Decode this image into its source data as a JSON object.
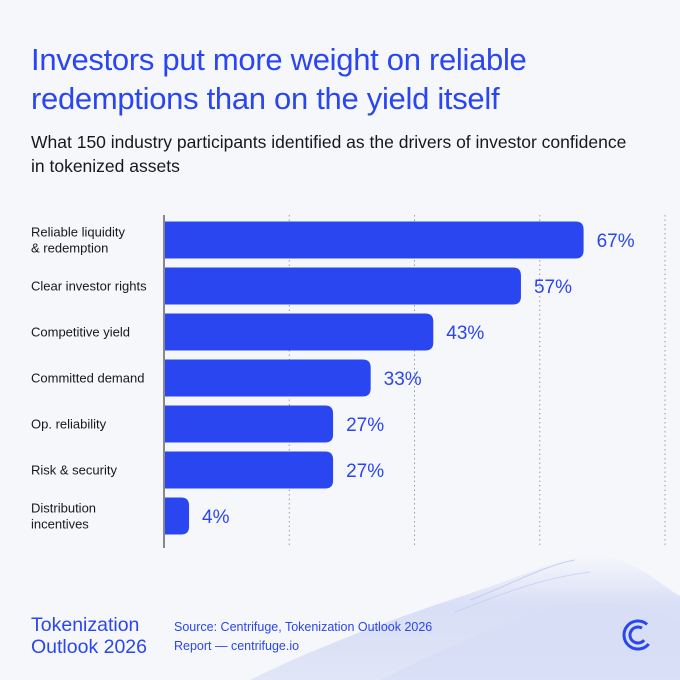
{
  "title": "Investors put more weight on reliable redemptions than on the yield itself",
  "subtitle": "What 150 industry participants identified as the drivers of investor confidence in tokenized assets",
  "brand": {
    "line1": "Tokenization",
    "line2": "Outlook 2026"
  },
  "source": {
    "line1": "Source: Centrifuge, Tokenization Outlook 2026",
    "line2": "Report — centrifuge.io"
  },
  "logo_icon": "centrifuge-logo-icon",
  "colors": {
    "bar": "#2a46f0",
    "text_accent": "#2a46f0",
    "background": "#f6f7fb",
    "grid": "#9a9ca3"
  },
  "chart_data": {
    "type": "bar",
    "orientation": "horizontal",
    "categories": [
      [
        "Reliable liquidity",
        "& redemption"
      ],
      [
        "Clear investor rights"
      ],
      [
        "Competitive yield"
      ],
      [
        "Committed demand"
      ],
      [
        "Op. reliability"
      ],
      [
        "Risk & security"
      ],
      [
        "Distribution",
        "incentives"
      ]
    ],
    "values": [
      67,
      57,
      43,
      33,
      27,
      27,
      4
    ],
    "value_labels": [
      "67%",
      "57%",
      "43%",
      "33%",
      "27%",
      "27%",
      "4%"
    ],
    "unit": "%",
    "xlim": [
      0,
      80
    ],
    "grid": true,
    "gridlines_at": [
      0,
      20,
      40,
      60,
      80
    ]
  }
}
